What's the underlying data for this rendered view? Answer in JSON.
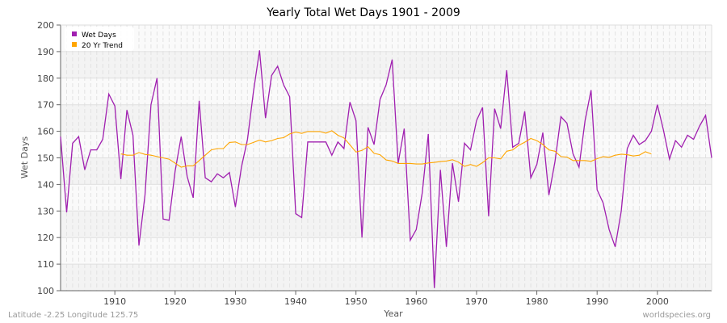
{
  "chart_data": {
    "type": "line",
    "title": "Yearly Total Wet Days 1901 - 2009",
    "xlabel": "Year",
    "ylabel": "Wet Days",
    "xlim": [
      1901,
      2009
    ],
    "ylim": [
      100,
      200
    ],
    "x_ticks": [
      1910,
      1920,
      1930,
      1940,
      1950,
      1960,
      1970,
      1980,
      1990,
      2000
    ],
    "y_ticks": [
      100,
      110,
      120,
      130,
      140,
      150,
      160,
      170,
      180,
      190,
      200
    ],
    "grid": true,
    "legend_position": "top-left",
    "series": [
      {
        "name": "Wet Days",
        "color": "#a020b0",
        "x_start": 1901,
        "values": [
          158,
          129.5,
          155.5,
          158,
          145.5,
          153,
          153,
          157,
          174,
          169.5,
          142,
          168,
          158.5,
          117,
          136,
          170,
          180,
          127,
          126.5,
          145,
          158,
          143,
          135,
          171.5,
          142.5,
          141,
          144,
          142.5,
          144.5,
          131.5,
          146.5,
          157,
          175,
          190.5,
          165,
          181,
          184.5,
          177.5,
          173,
          129,
          127.5,
          156,
          156,
          156,
          156,
          151,
          156,
          153.5,
          171,
          164,
          120,
          161.5,
          155,
          172,
          177.5,
          187,
          148,
          161,
          119,
          123,
          137,
          159,
          101,
          145.5,
          116.5,
          148,
          133.5,
          155.5,
          153,
          164,
          169,
          128,
          168.5,
          161,
          183,
          154,
          155.5,
          167.5,
          142.5,
          147.5,
          159.5,
          136,
          148.5,
          165.5,
          163,
          151.5,
          146.5,
          164,
          175.5,
          138,
          133,
          123,
          116.5,
          130,
          153.5,
          158.5,
          155,
          156.5,
          160,
          170,
          160.5,
          149.5,
          156.5,
          154,
          158.5,
          157,
          162,
          166,
          150
        ]
      },
      {
        "name": "20 Yr Trend",
        "color": "#ffa500",
        "x_start": 1911,
        "values": [
          151.5,
          151,
          151,
          152,
          151.3,
          151,
          150.5,
          150,
          149.5,
          148,
          146.5,
          147,
          147,
          149,
          151,
          153,
          153.5,
          153.5,
          155.8,
          156,
          155,
          155,
          155.8,
          156.7,
          156,
          156.5,
          157.3,
          157.6,
          159,
          159.7,
          159.2,
          159.9,
          159.9,
          159.9,
          159.3,
          160.2,
          158.5,
          157.5,
          154.9,
          152.2,
          152.8,
          154.2,
          151.7,
          151.2,
          149.2,
          148.8,
          147.9,
          147.9,
          147.9,
          147.7,
          147.7,
          148.1,
          148.3,
          148.6,
          148.8,
          149.3,
          148.4,
          146.8,
          147.5,
          146.8,
          148.2,
          150,
          150,
          149.6,
          152.5,
          153,
          154.7,
          155.9,
          157.3,
          156.5,
          155,
          153,
          152.5,
          150.5,
          150.3,
          149,
          149,
          149,
          148.7,
          149.7,
          150.5,
          150.2,
          151,
          151.4,
          151.2,
          150.7,
          151,
          152.3,
          151.5
        ]
      }
    ]
  },
  "footer": {
    "location": "Latitude -2.25 Longitude 125.75",
    "source": "worldspecies.org"
  }
}
